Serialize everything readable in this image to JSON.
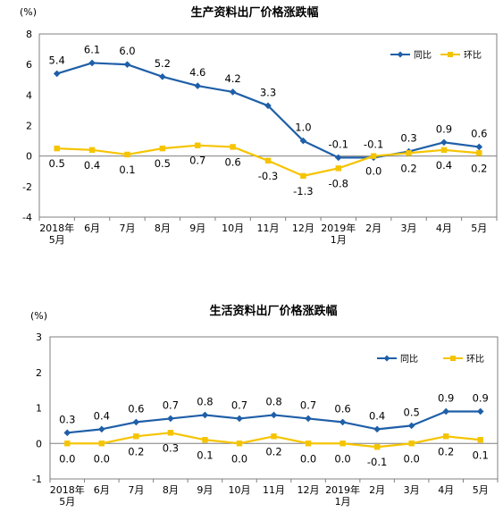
{
  "colors": {
    "yoy": "#1f5fa8",
    "mom": "#f5c400",
    "axis": "#7f7f7f"
  },
  "chart_data": [
    {
      "type": "line",
      "title": "生产资料出厂价格涨跌幅",
      "unit": "(%)",
      "categories": [
        "2018年\n5月",
        "6月",
        "7月",
        "8月",
        "9月",
        "10月",
        "11月",
        "12月",
        "2019年\n1月",
        "2月",
        "3月",
        "4月",
        "5月"
      ],
      "ylim": [
        -4,
        8
      ],
      "yticks": [
        -4,
        -2,
        0,
        2,
        4,
        6,
        8
      ],
      "legend": "top-right",
      "series": [
        {
          "name": "同比",
          "color": "#1f5fa8",
          "marker": "diamond",
          "values": [
            5.4,
            6.1,
            6.0,
            5.2,
            4.6,
            4.2,
            3.3,
            1.0,
            -0.1,
            -0.1,
            0.3,
            0.9,
            0.6
          ],
          "labels": [
            "5.4",
            "6.1",
            "6.0",
            "5.2",
            "4.6",
            "4.2",
            "3.3",
            "1.0",
            "-0.1",
            "-0.1",
            "0.3",
            "0.9",
            "0.6"
          ]
        },
        {
          "name": "环比",
          "color": "#f5c400",
          "marker": "square",
          "values": [
            0.5,
            0.4,
            0.1,
            0.5,
            0.7,
            0.6,
            -0.3,
            -1.3,
            -0.8,
            0.0,
            0.2,
            0.4,
            0.2
          ],
          "labels": [
            "0.5",
            "0.4",
            "0.1",
            "0.5",
            "0.7",
            "0.6",
            "-0.3",
            "-1.3",
            "-0.8",
            "0.0",
            "0.2",
            "0.4",
            "0.2"
          ]
        }
      ]
    },
    {
      "type": "line",
      "title": "生活资料出厂价格涨跌幅",
      "unit": "(%)",
      "categories": [
        "2018年\n5月",
        "6月",
        "7月",
        "8月",
        "9月",
        "10月",
        "11月",
        "12月",
        "2019年\n1月",
        "2月",
        "3月",
        "4月",
        "5月"
      ],
      "ylim": [
        -1,
        3
      ],
      "yticks": [
        -1,
        0,
        1,
        2,
        3
      ],
      "legend": "top-right",
      "series": [
        {
          "name": "同比",
          "color": "#1f5fa8",
          "marker": "diamond",
          "values": [
            0.3,
            0.4,
            0.6,
            0.7,
            0.8,
            0.7,
            0.8,
            0.7,
            0.6,
            0.4,
            0.5,
            0.9,
            0.9
          ],
          "labels": [
            "0.3",
            "0.4",
            "0.6",
            "0.7",
            "0.8",
            "0.7",
            "0.8",
            "0.7",
            "0.6",
            "0.4",
            "0.5",
            "0.9",
            "0.9"
          ]
        },
        {
          "name": "环比",
          "color": "#f5c400",
          "marker": "square",
          "values": [
            0.0,
            0.0,
            0.2,
            0.3,
            0.1,
            0.0,
            0.2,
            0.0,
            0.0,
            -0.1,
            0.0,
            0.2,
            0.1
          ],
          "labels": [
            "0.0",
            "0.0",
            "0.2",
            "0.3",
            "0.1",
            "0.0",
            "0.2",
            "0.0",
            "0.0",
            "-0.1",
            "0.0",
            "0.2",
            "0.1"
          ]
        }
      ]
    }
  ]
}
